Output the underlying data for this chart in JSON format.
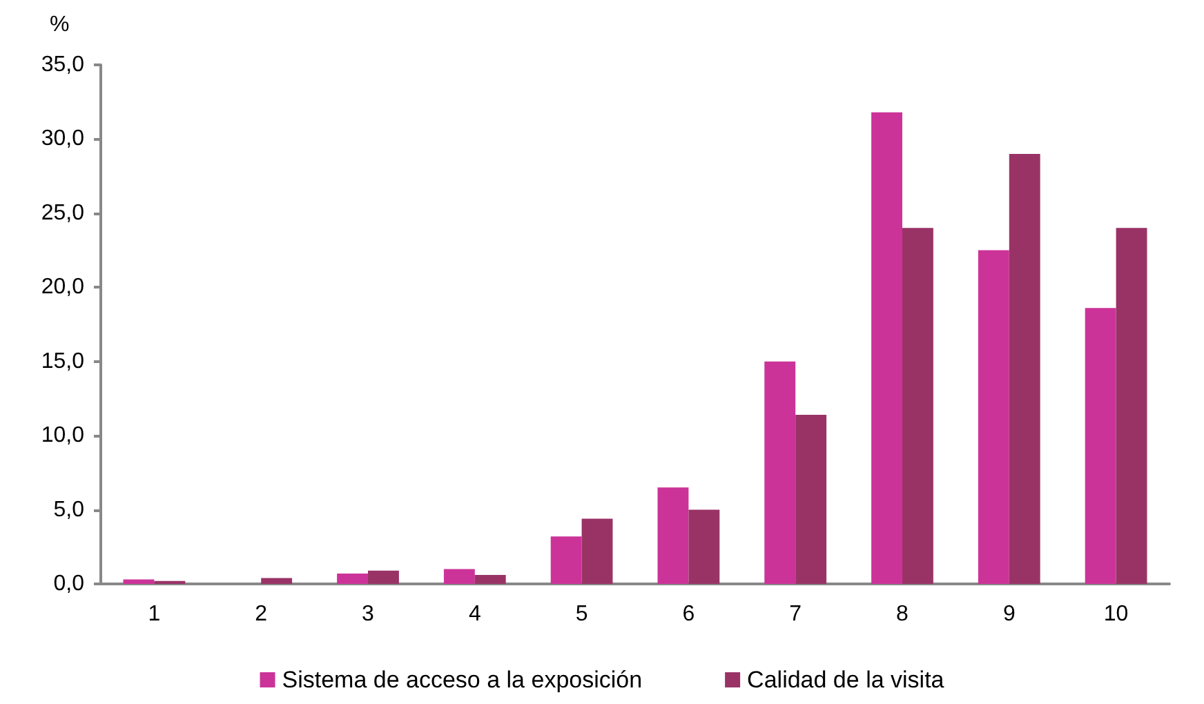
{
  "chart_data": {
    "type": "bar",
    "ylabel": "%",
    "categories": [
      "1",
      "2",
      "3",
      "4",
      "5",
      "6",
      "7",
      "8",
      "9",
      "10"
    ],
    "series": [
      {
        "name": "Sistema de acceso a la exposición",
        "color": "#cc3399",
        "values": [
          0.3,
          0,
          0.7,
          1.0,
          3.2,
          6.5,
          15.0,
          31.8,
          22.5,
          18.6
        ]
      },
      {
        "name": "Calidad de la visita",
        "color": "#993366",
        "values": [
          0.2,
          0.4,
          0.9,
          0.6,
          4.4,
          5.0,
          11.4,
          24.0,
          29.0,
          24.0
        ]
      }
    ],
    "ylim": [
      0,
      35
    ],
    "yticks": [
      {
        "value": 0,
        "label": "0,0"
      },
      {
        "value": 5,
        "label": "5,0"
      },
      {
        "value": 10,
        "label": "10,0"
      },
      {
        "value": 15,
        "label": "15,0"
      },
      {
        "value": 20,
        "label": "20,0"
      },
      {
        "value": 25,
        "label": "25,0"
      },
      {
        "value": 30,
        "label": "30,0"
      },
      {
        "value": 35,
        "label": "35,0"
      }
    ],
    "grid": false,
    "legend": "bottom"
  }
}
